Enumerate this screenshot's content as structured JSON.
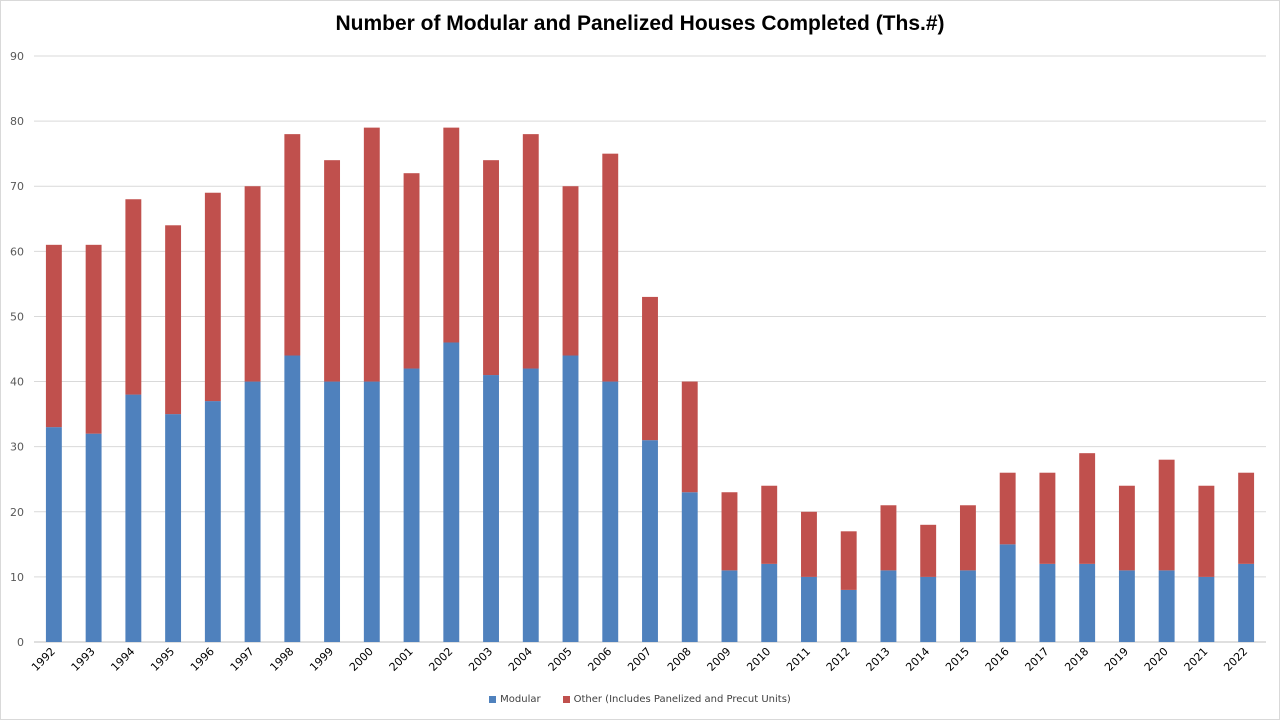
{
  "chart_data": {
    "type": "bar",
    "stacked": true,
    "title": "Number of Modular and Panelized Houses Completed (Ths.#)",
    "xlabel": "",
    "ylabel": "",
    "ylim": [
      0,
      90
    ],
    "yticks": [
      0,
      10,
      20,
      30,
      40,
      50,
      60,
      70,
      80,
      90
    ],
    "grid": true,
    "legend_position": "bottom",
    "categories": [
      "1992",
      "1993",
      "1994",
      "1995",
      "1996",
      "1997",
      "1998",
      "1999",
      "2000",
      "2001",
      "2002",
      "2003",
      "2004",
      "2005",
      "2006",
      "2007",
      "2008",
      "2009",
      "2010",
      "2011",
      "2012",
      "2013",
      "2014",
      "2015",
      "2016",
      "2017",
      "2018",
      "2019",
      "2020",
      "2021",
      "2022"
    ],
    "series": [
      {
        "name": "Modular",
        "color": "#4f81bd",
        "values": [
          33,
          32,
          38,
          35,
          37,
          40,
          44,
          40,
          40,
          42,
          46,
          41,
          42,
          44,
          40,
          31,
          23,
          11,
          12,
          10,
          8,
          11,
          10,
          11,
          15,
          12,
          12,
          11,
          11,
          10,
          12
        ]
      },
      {
        "name": "Other (Includes Panelized and Precut Units)",
        "color": "#c0504d",
        "values": [
          28,
          29,
          30,
          29,
          32,
          30,
          34,
          34,
          39,
          30,
          33,
          33,
          36,
          26,
          35,
          22,
          17,
          12,
          12,
          10,
          9,
          10,
          8,
          10,
          11,
          14,
          17,
          13,
          17,
          14,
          14
        ]
      }
    ]
  }
}
